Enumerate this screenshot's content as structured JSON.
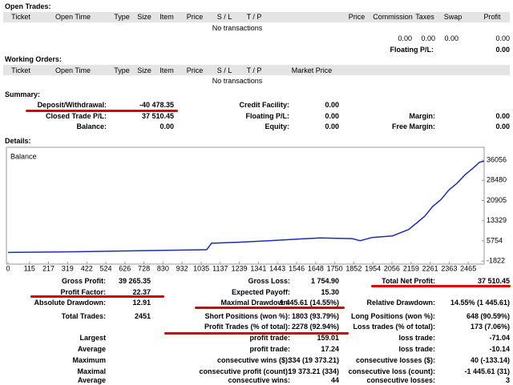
{
  "open_trades": {
    "title": "Open Trades:",
    "columns": [
      "Ticket",
      "Open Time",
      "Type",
      "Size",
      "Item",
      "Price",
      "S / L",
      "T / P",
      "Price",
      "Commission",
      "Taxes",
      "Swap",
      "Profit"
    ],
    "empty": "No transactions",
    "totals": [
      "0.00",
      "0.00",
      "0.00",
      "0.00"
    ],
    "floating_label": "Floating P/L:",
    "floating_value": "0.00"
  },
  "working_orders": {
    "title": "Working Orders:",
    "columns": [
      "Ticket",
      "Open Time",
      "Type",
      "Size",
      "Item",
      "Price",
      "S / L",
      "T / P",
      "Market Price"
    ],
    "empty": "No transactions"
  },
  "summary": {
    "title": "Summary:",
    "rows": [
      [
        "Deposit/Withdrawal:",
        "-40 478.35",
        "Credit Facility:",
        "0.00"
      ],
      [
        "Closed Trade P/L:",
        "37 510.45",
        "Floating P/L:",
        "0.00",
        "Margin:",
        "0.00"
      ],
      [
        "Balance:",
        "0.00",
        "Equity:",
        "0.00",
        "Free Margin:",
        "0.00"
      ]
    ]
  },
  "details": {
    "title": "Details:"
  },
  "chart_data": {
    "type": "line",
    "x": [
      0,
      372,
      805,
      1064,
      1090,
      1237,
      1410,
      1670,
      1843,
      1886,
      1950,
      2059,
      2145,
      2189,
      2232,
      2275,
      2318,
      2362,
      2405,
      2448,
      2491,
      2526,
      2550
    ],
    "series": [
      {
        "name": "Balance",
        "color": "#1c2fb0",
        "values": [
          1400,
          1650,
          2150,
          2400,
          4850,
          5250,
          5850,
          6850,
          6600,
          5800,
          7000,
          7600,
          10000,
          12500,
          15000,
          18700,
          21200,
          24900,
          27400,
          30600,
          33100,
          35300,
          35700
        ]
      }
    ],
    "xlim": [
      0,
      2550
    ],
    "ylim": [
      -2400,
      39700
    ],
    "xticks": [
      0,
      115,
      217,
      319,
      422,
      524,
      626,
      728,
      830,
      932,
      1035,
      1137,
      1239,
      1341,
      1443,
      1546,
      1648,
      1750,
      1852,
      1954,
      2056,
      2159,
      2261,
      2363,
      2465
    ],
    "yticks": [
      -1822,
      5754,
      13329,
      20905,
      28480,
      36056
    ]
  },
  "stats": {
    "rows": [
      {
        "c1": [
          "Gross Profit:",
          "39 265.35"
        ],
        "c2": [
          "Gross Loss:",
          "1 754.90"
        ],
        "c3": [
          "Total Net Profit:",
          "37 510.45"
        ]
      },
      {
        "c1": [
          "Profit Factor:",
          "22.37"
        ],
        "c2": [
          "Expected Payoff:",
          "15.30"
        ]
      },
      {
        "c1": [
          "Absolute Drawdown:",
          "12.91"
        ],
        "c2": [
          "Maximal Drawdown:",
          "1 445.61 (14.55%)"
        ],
        "c3": [
          "Relative Drawdown:",
          "14.55% (1 445.61)"
        ]
      },
      {
        "c1": [
          "Total Trades:",
          "2451"
        ],
        "c2": [
          "Short Positions (won %):",
          "1803 (93.79%)"
        ],
        "c3": [
          "Long Positions (won %):",
          "648 (90.59%)"
        ]
      },
      {
        "c2": [
          "Profit Trades (% of total):",
          "2278 (92.94%)"
        ],
        "c3": [
          "Loss trades (% of total):",
          "173 (7.06%)"
        ]
      },
      {
        "c1": [
          "Largest"
        ],
        "c2": [
          "profit trade:",
          "159.01"
        ],
        "c3": [
          "loss trade:",
          "-71.04"
        ]
      },
      {
        "c1": [
          "Average"
        ],
        "c2": [
          "profit trade:",
          "17.24"
        ],
        "c3": [
          "loss trade:",
          "-10.14"
        ]
      },
      {
        "c1": [
          "Maximum"
        ],
        "c2": [
          "consecutive wins ($):",
          "334 (19 373.21)"
        ],
        "c3": [
          "consecutive losses ($):",
          "40 (-133.14)"
        ]
      },
      {
        "c1": [
          "Maximal"
        ],
        "c2": [
          "consecutive profit (count):",
          "19 373.21 (334)"
        ],
        "c3": [
          "consecutive loss (count):",
          "-1 445.61 (31)"
        ]
      },
      {
        "c1": [
          "Average"
        ],
        "c2": [
          "consecutive wins:",
          "44"
        ],
        "c3": [
          "consecutive losses:",
          "3"
        ]
      }
    ]
  }
}
